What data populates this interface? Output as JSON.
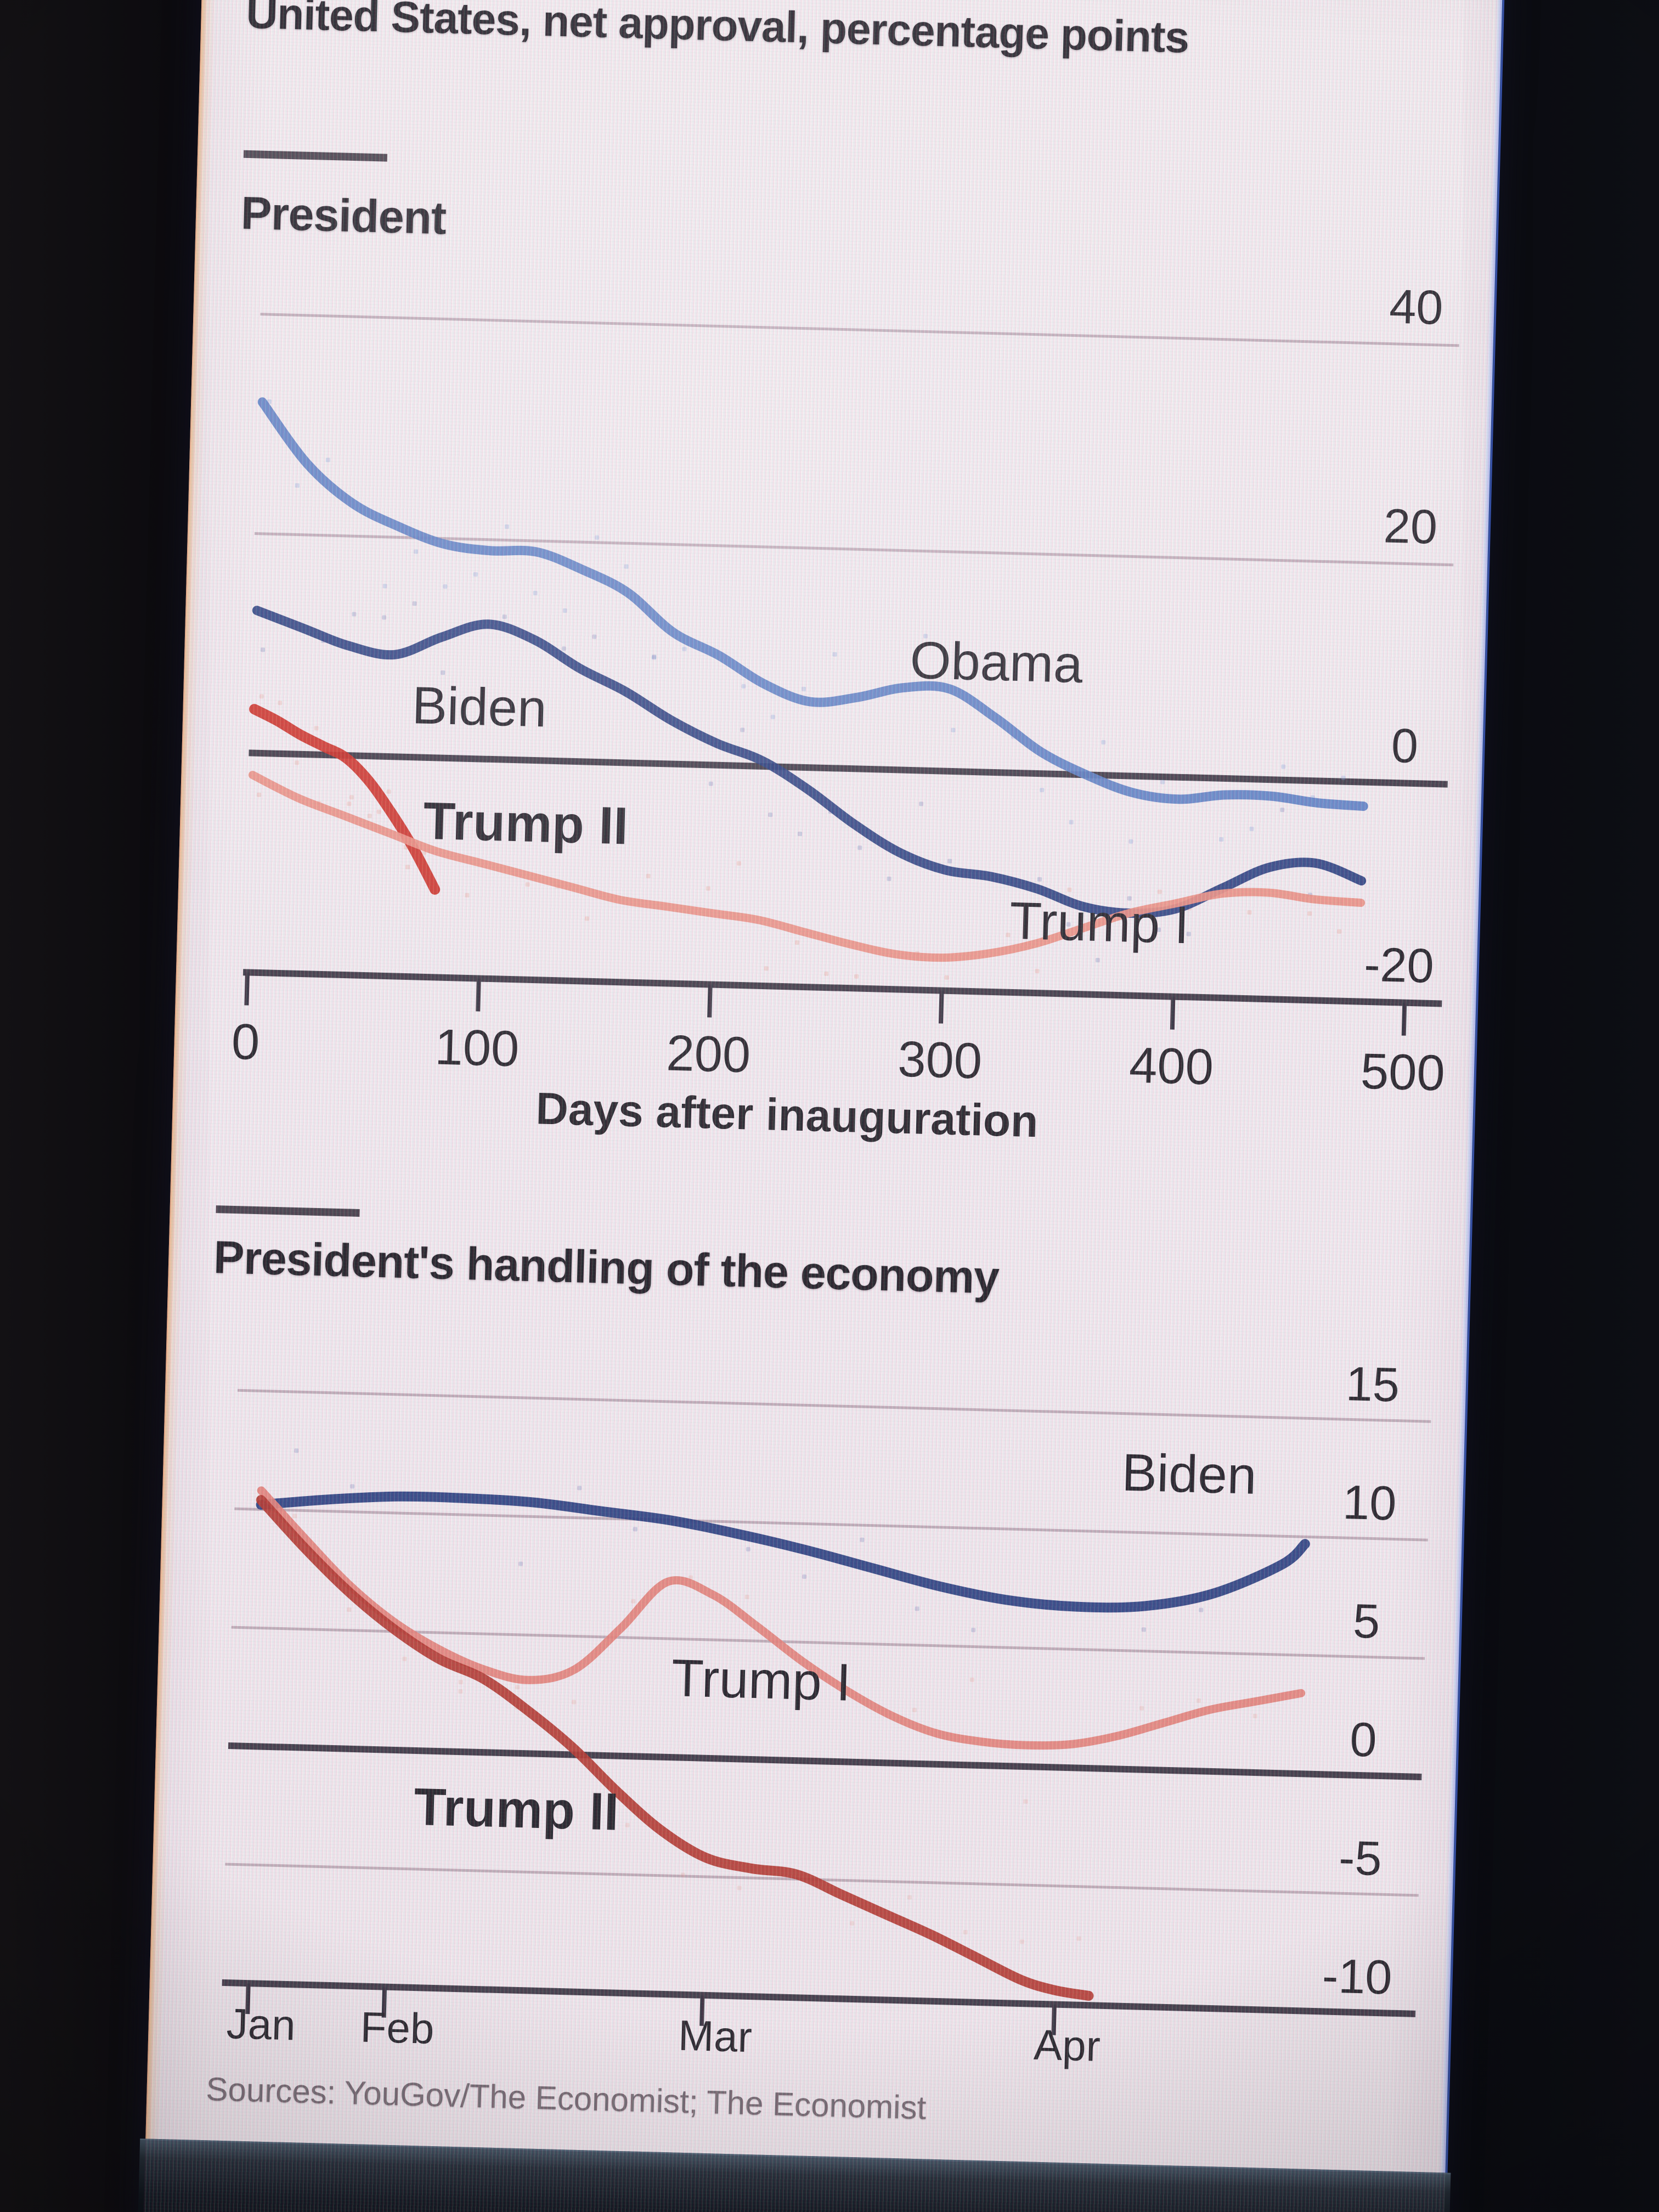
{
  "title": "United States, net approval, percentage points",
  "sources_note": "Sources: YouGov/The Economist; The Economist",
  "colors": {
    "screen_background": "#f2eaee",
    "ink": "#262329",
    "grid": "#b5a0ab",
    "axis_dark": "#3a3440",
    "obama": "#5c7fc3",
    "biden": "#2a3e7e",
    "trump2": "#cd2f25",
    "trump1": "#ec9183",
    "trump2_econ": "#b43a30",
    "trump1_econ": "#e4837a",
    "dot_blue": "#7e9cd8",
    "dot_navy": "#5a6aaa",
    "dot_red": "#e8a193",
    "source_text": "#776b72"
  },
  "chart_data": [
    {
      "type": "line",
      "title": "President",
      "xlabel": "Days after inauguration",
      "x_ticks": [
        0,
        100,
        200,
        300,
        400,
        500
      ],
      "y_ticks": [
        40,
        20,
        0,
        -20
      ],
      "xlim": [
        0,
        500
      ],
      "ylim": [
        -20,
        40
      ],
      "grid": "horizontal",
      "legend_position": "inline-labels",
      "series": [
        {
          "name": "Obama",
          "color": "#5c7fc3",
          "x": [
            0,
            20,
            40,
            60,
            80,
            100,
            120,
            140,
            160,
            180,
            200,
            220,
            240,
            260,
            280,
            300,
            320,
            340,
            360,
            380,
            400,
            420,
            440,
            460,
            480
          ],
          "values": [
            32,
            26.5,
            23,
            21,
            19.5,
            19,
            19,
            17.5,
            15.5,
            12,
            10,
            7.5,
            6,
            6.5,
            7.5,
            7.5,
            5,
            2,
            0,
            -1.5,
            -2,
            -1.5,
            -1.5,
            -2,
            -2.2
          ]
        },
        {
          "name": "Biden",
          "color": "#2a3e7e",
          "x": [
            0,
            20,
            40,
            60,
            80,
            100,
            120,
            140,
            160,
            180,
            200,
            220,
            240,
            260,
            280,
            300,
            320,
            340,
            360,
            380,
            400,
            420,
            440,
            460,
            480
          ],
          "values": [
            13,
            11.5,
            10,
            9.3,
            11,
            12.3,
            11,
            8.5,
            6.5,
            4,
            2,
            0.5,
            -2,
            -5,
            -7.5,
            -9,
            -9.5,
            -10.5,
            -12,
            -12.5,
            -12,
            -10,
            -8,
            -7.5,
            -9
          ]
        },
        {
          "name": "Trump II",
          "color": "#cd2f25",
          "bold_label": true,
          "x": [
            0,
            10,
            20,
            30,
            40,
            50,
            60,
            70,
            80
          ],
          "values": [
            4,
            3,
            1.8,
            0.8,
            -0.2,
            -2.2,
            -5,
            -8.2,
            -12
          ]
        },
        {
          "name": "Trump I",
          "color": "#ec9183",
          "x": [
            0,
            20,
            40,
            60,
            80,
            100,
            120,
            140,
            160,
            180,
            200,
            220,
            240,
            260,
            280,
            300,
            320,
            340,
            360,
            380,
            400,
            420,
            440,
            460,
            480
          ],
          "values": [
            -2,
            -4,
            -5.5,
            -7,
            -8.5,
            -9.5,
            -10.5,
            -11.5,
            -12.5,
            -13,
            -13.5,
            -14,
            -15,
            -16,
            -16.8,
            -17,
            -16.5,
            -15.5,
            -14,
            -12.5,
            -11.5,
            -10.5,
            -10.3,
            -10.8,
            -11
          ]
        }
      ]
    },
    {
      "type": "line",
      "title": "President's handling of the economy",
      "xlabel": "",
      "x_ticks": [
        "Jan",
        "Feb",
        "Mar",
        "Apr"
      ],
      "x_tick_days": [
        0,
        12,
        40,
        71
      ],
      "y_ticks": [
        15,
        10,
        5,
        0,
        -5,
        -10
      ],
      "xlim_days": [
        0,
        100
      ],
      "ylim": [
        -10,
        15
      ],
      "grid": "horizontal",
      "legend_position": "inline-labels",
      "series": [
        {
          "name": "Biden",
          "color": "#2a3e7e",
          "x": [
            0,
            6,
            12,
            18,
            24,
            30,
            36,
            42,
            48,
            54,
            60,
            66,
            72,
            78,
            84,
            90,
            92
          ],
          "values": [
            10.2,
            10.5,
            10.7,
            10.7,
            10.6,
            10.3,
            10,
            9.5,
            8.9,
            8.2,
            7.5,
            7,
            6.8,
            6.9,
            7.5,
            8.8,
            9.7
          ]
        },
        {
          "name": "Trump I",
          "color": "#e4837a",
          "x": [
            0,
            4,
            8,
            12,
            16,
            20,
            24,
            28,
            32,
            36,
            40,
            44,
            48,
            52,
            56,
            60,
            64,
            68,
            72,
            76,
            80,
            84,
            88,
            92
          ],
          "values": [
            10.8,
            8.8,
            6.9,
            5.4,
            4.3,
            3.5,
            3.1,
            3.6,
            5.4,
            7.4,
            6.9,
            5.6,
            4.2,
            3,
            2,
            1.3,
            1,
            0.9,
            1,
            1.4,
            2,
            2.6,
            3,
            3.4
          ]
        },
        {
          "name": "Trump II",
          "color": "#b43a30",
          "bold_label": true,
          "x": [
            0,
            4,
            8,
            12,
            16,
            20,
            24,
            28,
            32,
            36,
            40,
            44,
            48,
            52,
            56,
            60,
            64,
            68,
            71,
            74
          ],
          "values": [
            10.4,
            8.4,
            6.6,
            5.1,
            3.9,
            3.1,
            1.8,
            0.3,
            -1.5,
            -3.1,
            -4.2,
            -4.6,
            -4.8,
            -5.6,
            -6.4,
            -7.2,
            -8.1,
            -9,
            -9.4,
            -9.6
          ]
        }
      ]
    }
  ]
}
